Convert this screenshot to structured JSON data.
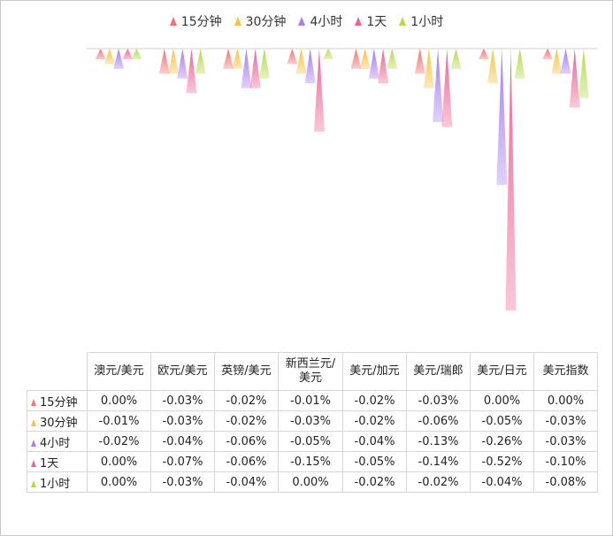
{
  "legend": [
    "15分钟",
    "30分钟",
    "4小时",
    "1天",
    "1小时"
  ],
  "colors": [
    "#f2726f",
    "#f5c244",
    "#a77cf2",
    "#f06292",
    "#b5d94a"
  ],
  "chart_data": {
    "type": "bar",
    "categories": [
      "澳元/美元",
      "欧元/美元",
      "英镑/美元",
      "新西兰元/美元",
      "美元/加元",
      "美元/瑞郎",
      "美元/日元",
      "美元指数"
    ],
    "series": [
      {
        "name": "15分钟",
        "values": [
          0.0,
          -0.03,
          -0.02,
          -0.01,
          -0.02,
          -0.03,
          0.0,
          0.0
        ],
        "labels": [
          "0.00%",
          "-0.03%",
          "-0.02%",
          "-0.01%",
          "-0.02%",
          "-0.03%",
          "0.00%",
          "0.00%"
        ]
      },
      {
        "name": "30分钟",
        "values": [
          -0.01,
          -0.03,
          -0.02,
          -0.03,
          -0.02,
          -0.06,
          -0.05,
          -0.03
        ],
        "labels": [
          "-0.01%",
          "-0.03%",
          "-0.02%",
          "-0.03%",
          "-0.02%",
          "-0.06%",
          "-0.05%",
          "-0.03%"
        ]
      },
      {
        "name": "4小时",
        "values": [
          -0.02,
          -0.04,
          -0.06,
          -0.05,
          -0.04,
          -0.13,
          -0.26,
          -0.03
        ],
        "labels": [
          "-0.02%",
          "-0.04%",
          "-0.06%",
          "-0.05%",
          "-0.04%",
          "-0.13%",
          "-0.26%",
          "-0.03%"
        ]
      },
      {
        "name": "1天",
        "values": [
          0.0,
          -0.07,
          -0.06,
          -0.15,
          -0.05,
          -0.14,
          -0.52,
          -0.1
        ],
        "labels": [
          "0.00%",
          "-0.07%",
          "-0.06%",
          "-0.15%",
          "-0.05%",
          "-0.14%",
          "-0.52%",
          "-0.10%"
        ]
      },
      {
        "name": "1小时",
        "values": [
          0.0,
          -0.03,
          -0.04,
          0.0,
          -0.02,
          -0.02,
          -0.04,
          -0.08
        ],
        "labels": [
          "0.00%",
          "-0.03%",
          "-0.04%",
          "0.00%",
          "-0.02%",
          "-0.02%",
          "-0.04%",
          "-0.08%"
        ]
      }
    ],
    "ylim": [
      -0.52,
      0
    ],
    "grid": false,
    "legend_position": "top"
  },
  "table": {
    "headers": [
      "澳元/美元",
      "欧元/美元",
      "英镑/美元",
      "新西兰元/\n美元",
      "美元/加元",
      "美元/瑞郎",
      "美元/日元",
      "美元指数"
    ]
  }
}
